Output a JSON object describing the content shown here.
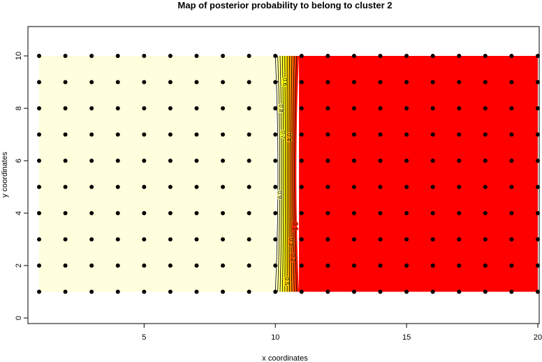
{
  "chart_data": {
    "type": "heatmap",
    "title": "Map of posterior probability to belong to cluster  2",
    "xlabel": "x coordinates",
    "ylabel": "y coordinates",
    "xlim": [
      1,
      20
    ],
    "ylim": [
      0,
      11
    ],
    "x_ticks": [
      5,
      10,
      15,
      20
    ],
    "y_ticks": [
      0,
      2,
      4,
      6,
      8,
      10
    ],
    "points_x": [
      1,
      2,
      3,
      4,
      5,
      6,
      7,
      8,
      9,
      10,
      11,
      12,
      13,
      14,
      15,
      16,
      17,
      18,
      19,
      20
    ],
    "points_y": [
      1,
      2,
      3,
      4,
      5,
      6,
      7,
      8,
      9,
      10
    ],
    "contour_levels": [
      1,
      0.9,
      0.8,
      0.7,
      0.6,
      0.5,
      0.4,
      0.3,
      0.2,
      0.1
    ],
    "contour_labels": [
      "1",
      "0.9",
      "0.8",
      "0.7",
      "0.6",
      "0.5",
      "0.4",
      "0.3",
      "0.2",
      "0.1"
    ],
    "probability_left_of_x10": 1,
    "probability_right_of_x11": 0,
    "colors": {
      "high": "#FFFFDD",
      "mid": "#FFFF00",
      "low": "#FF0000",
      "points": "#000000"
    }
  }
}
